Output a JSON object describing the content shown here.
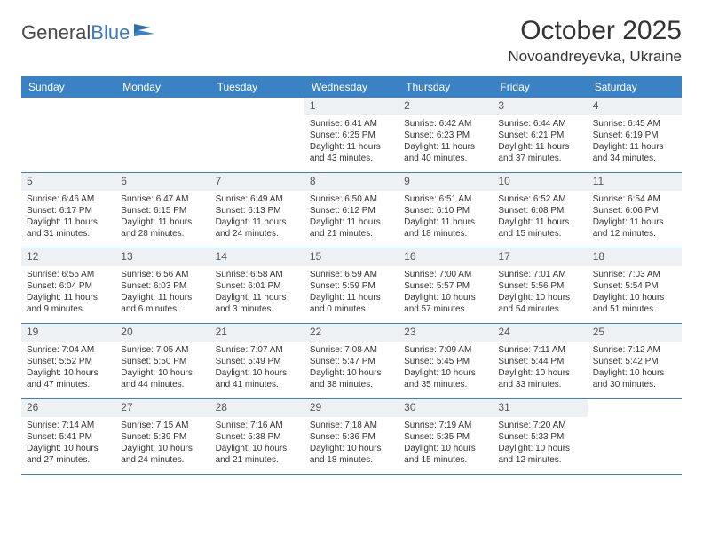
{
  "logo": {
    "general": "General",
    "blue": "Blue"
  },
  "title": "October 2025",
  "location": "Novoandreyevka, Ukraine",
  "colors": {
    "header_bg": "#3b82c4",
    "header_text": "#ffffff",
    "daynum_bg": "#eef1f3",
    "text": "#333333",
    "border": "#3b82c4"
  },
  "dayNames": [
    "Sunday",
    "Monday",
    "Tuesday",
    "Wednesday",
    "Thursday",
    "Friday",
    "Saturday"
  ],
  "weeks": [
    [
      null,
      null,
      null,
      {
        "n": "1",
        "sr": "6:41 AM",
        "ss": "6:25 PM",
        "dl": "11 hours and 43 minutes."
      },
      {
        "n": "2",
        "sr": "6:42 AM",
        "ss": "6:23 PM",
        "dl": "11 hours and 40 minutes."
      },
      {
        "n": "3",
        "sr": "6:44 AM",
        "ss": "6:21 PM",
        "dl": "11 hours and 37 minutes."
      },
      {
        "n": "4",
        "sr": "6:45 AM",
        "ss": "6:19 PM",
        "dl": "11 hours and 34 minutes."
      }
    ],
    [
      {
        "n": "5",
        "sr": "6:46 AM",
        "ss": "6:17 PM",
        "dl": "11 hours and 31 minutes."
      },
      {
        "n": "6",
        "sr": "6:47 AM",
        "ss": "6:15 PM",
        "dl": "11 hours and 28 minutes."
      },
      {
        "n": "7",
        "sr": "6:49 AM",
        "ss": "6:13 PM",
        "dl": "11 hours and 24 minutes."
      },
      {
        "n": "8",
        "sr": "6:50 AM",
        "ss": "6:12 PM",
        "dl": "11 hours and 21 minutes."
      },
      {
        "n": "9",
        "sr": "6:51 AM",
        "ss": "6:10 PM",
        "dl": "11 hours and 18 minutes."
      },
      {
        "n": "10",
        "sr": "6:52 AM",
        "ss": "6:08 PM",
        "dl": "11 hours and 15 minutes."
      },
      {
        "n": "11",
        "sr": "6:54 AM",
        "ss": "6:06 PM",
        "dl": "11 hours and 12 minutes."
      }
    ],
    [
      {
        "n": "12",
        "sr": "6:55 AM",
        "ss": "6:04 PM",
        "dl": "11 hours and 9 minutes."
      },
      {
        "n": "13",
        "sr": "6:56 AM",
        "ss": "6:03 PM",
        "dl": "11 hours and 6 minutes."
      },
      {
        "n": "14",
        "sr": "6:58 AM",
        "ss": "6:01 PM",
        "dl": "11 hours and 3 minutes."
      },
      {
        "n": "15",
        "sr": "6:59 AM",
        "ss": "5:59 PM",
        "dl": "11 hours and 0 minutes."
      },
      {
        "n": "16",
        "sr": "7:00 AM",
        "ss": "5:57 PM",
        "dl": "10 hours and 57 minutes."
      },
      {
        "n": "17",
        "sr": "7:01 AM",
        "ss": "5:56 PM",
        "dl": "10 hours and 54 minutes."
      },
      {
        "n": "18",
        "sr": "7:03 AM",
        "ss": "5:54 PM",
        "dl": "10 hours and 51 minutes."
      }
    ],
    [
      {
        "n": "19",
        "sr": "7:04 AM",
        "ss": "5:52 PM",
        "dl": "10 hours and 47 minutes."
      },
      {
        "n": "20",
        "sr": "7:05 AM",
        "ss": "5:50 PM",
        "dl": "10 hours and 44 minutes."
      },
      {
        "n": "21",
        "sr": "7:07 AM",
        "ss": "5:49 PM",
        "dl": "10 hours and 41 minutes."
      },
      {
        "n": "22",
        "sr": "7:08 AM",
        "ss": "5:47 PM",
        "dl": "10 hours and 38 minutes."
      },
      {
        "n": "23",
        "sr": "7:09 AM",
        "ss": "5:45 PM",
        "dl": "10 hours and 35 minutes."
      },
      {
        "n": "24",
        "sr": "7:11 AM",
        "ss": "5:44 PM",
        "dl": "10 hours and 33 minutes."
      },
      {
        "n": "25",
        "sr": "7:12 AM",
        "ss": "5:42 PM",
        "dl": "10 hours and 30 minutes."
      }
    ],
    [
      {
        "n": "26",
        "sr": "7:14 AM",
        "ss": "5:41 PM",
        "dl": "10 hours and 27 minutes."
      },
      {
        "n": "27",
        "sr": "7:15 AM",
        "ss": "5:39 PM",
        "dl": "10 hours and 24 minutes."
      },
      {
        "n": "28",
        "sr": "7:16 AM",
        "ss": "5:38 PM",
        "dl": "10 hours and 21 minutes."
      },
      {
        "n": "29",
        "sr": "7:18 AM",
        "ss": "5:36 PM",
        "dl": "10 hours and 18 minutes."
      },
      {
        "n": "30",
        "sr": "7:19 AM",
        "ss": "5:35 PM",
        "dl": "10 hours and 15 minutes."
      },
      {
        "n": "31",
        "sr": "7:20 AM",
        "ss": "5:33 PM",
        "dl": "10 hours and 12 minutes."
      },
      null
    ]
  ],
  "labels": {
    "sunrise": "Sunrise: ",
    "sunset": "Sunset: ",
    "daylight": "Daylight: "
  }
}
